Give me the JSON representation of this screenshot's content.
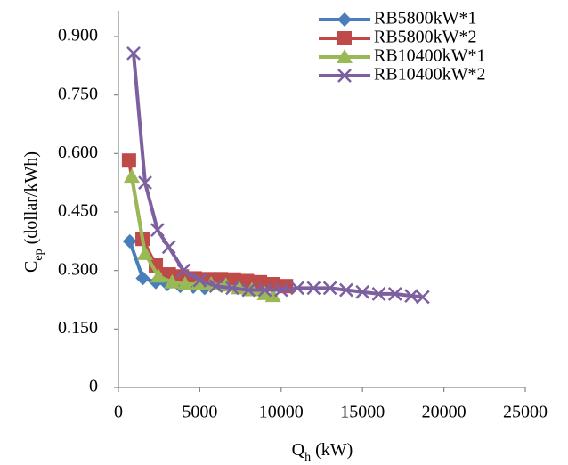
{
  "chart_data": {
    "type": "line",
    "xlabel": [
      "Q",
      "h",
      " (kW)"
    ],
    "ylabel": [
      "C",
      "ep",
      " (dollar/kWh)"
    ],
    "xlim": [
      0,
      25000
    ],
    "xticks": [
      0,
      5000,
      10000,
      15000,
      20000,
      25000
    ],
    "ylim": [
      0,
      0.9
    ],
    "yticks": [
      0,
      {
        "value": 0.15,
        "label": "0.150"
      },
      {
        "value": 0.3,
        "label": "0.300"
      },
      {
        "value": 0.45,
        "label": "0.450"
      },
      {
        "value": 0.6,
        "label": "0.600"
      },
      {
        "value": 0.75,
        "label": "0.750"
      },
      {
        "value": 0.9,
        "label": "0.900"
      }
    ],
    "legend": "top-right",
    "series": [
      {
        "name": "RB5800kW*1",
        "color": "#4a7ebb",
        "marker": "diamond",
        "x": [
          700,
          1500,
          2300,
          3000,
          3800,
          4600,
          5300
        ],
        "values": [
          0.375,
          0.28,
          0.27,
          0.265,
          0.26,
          0.258,
          0.255
        ]
      },
      {
        "name": "RB5800kW*2",
        "color": "#be4b48",
        "marker": "square",
        "x": [
          650,
          1480,
          2300,
          3100,
          3900,
          4700,
          5500,
          6300,
          7100,
          7900,
          8700,
          9500,
          10300
        ],
        "values": [
          0.582,
          0.381,
          0.313,
          0.29,
          0.285,
          0.28,
          0.278,
          0.278,
          0.277,
          0.273,
          0.27,
          0.265,
          0.26
        ]
      },
      {
        "name": "RB10400kW*1",
        "color": "#98b954",
        "marker": "triangle",
        "x": [
          820,
          1640,
          2460,
          3300,
          4100,
          4900,
          5700,
          6600,
          7400,
          8200,
          9000,
          9500
        ],
        "values": [
          0.541,
          0.343,
          0.285,
          0.27,
          0.265,
          0.265,
          0.265,
          0.262,
          0.255,
          0.25,
          0.24,
          0.235
        ]
      },
      {
        "name": "RB10400kW*2",
        "color": "#7d60a0",
        "marker": "x",
        "x": [
          930,
          1640,
          2400,
          3100,
          4000,
          5000,
          6000,
          7000,
          8000,
          9000,
          10000,
          11000,
          12000,
          13000,
          14000,
          15000,
          16000,
          17000,
          18000,
          18700
        ],
        "values": [
          0.857,
          0.525,
          0.404,
          0.36,
          0.3,
          0.275,
          0.26,
          0.255,
          0.25,
          0.25,
          0.25,
          0.255,
          0.255,
          0.255,
          0.25,
          0.245,
          0.24,
          0.24,
          0.235,
          0.232
        ]
      }
    ]
  }
}
